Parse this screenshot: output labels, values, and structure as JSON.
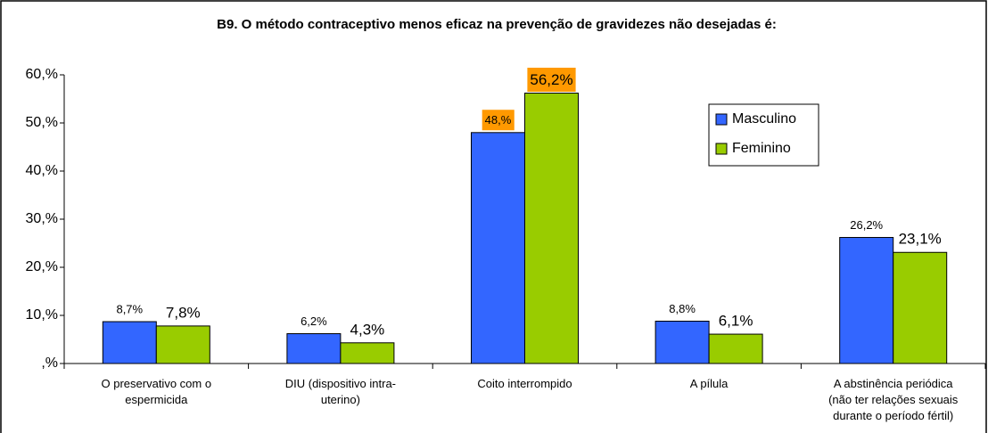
{
  "chart_data": {
    "type": "bar",
    "title": "B9. O método contraceptivo menos eficaz na prevenção de gravidezes não desejadas é:",
    "categories": [
      "O preservativo com o\nespermicida",
      "DIU (dispositivo intra-\nuterino)",
      "Coito interrompido",
      "A pílula",
      "A abstinência periódica\n(não ter relações sexuais\ndurante o período fértil)"
    ],
    "series": [
      {
        "name": "Masculino",
        "color": "#3366ff",
        "values": [
          8.7,
          6.2,
          48,
          8.8,
          26.2
        ],
        "value_labels": [
          "8,7%",
          "6,2%",
          "48,%",
          "8,8%",
          "26,2%"
        ]
      },
      {
        "name": "Feminino",
        "color": "#99cc00",
        "values": [
          7.8,
          4.3,
          56.2,
          6.1,
          23.1
        ],
        "value_labels": [
          "7,8%",
          "4,3%",
          "56,2%",
          "6,1%",
          "23,1%"
        ]
      }
    ],
    "ylim": [
      0,
      60
    ],
    "yticks": [
      {
        "value": 0,
        "label": ",%"
      },
      {
        "value": 10,
        "label": "10,%"
      },
      {
        "value": 20,
        "label": "20,%"
      },
      {
        "value": 30,
        "label": "30,%"
      },
      {
        "value": 40,
        "label": "40,%"
      },
      {
        "value": 50,
        "label": "50,%"
      },
      {
        "value": 60,
        "label": "60,%"
      }
    ],
    "grid": false,
    "legend": "upper right",
    "label_highlight": {
      "category": 2,
      "color": "#ff9900"
    }
  }
}
